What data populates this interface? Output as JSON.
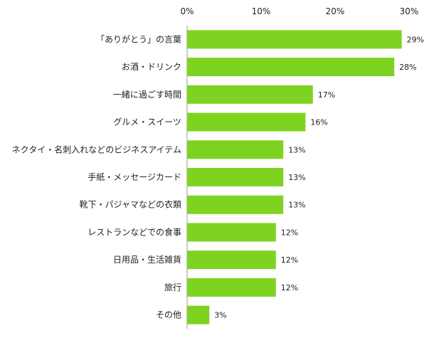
{
  "chart_data": {
    "type": "bar",
    "orientation": "horizontal",
    "title": "",
    "xlabel": "",
    "ylabel": "",
    "xlim": [
      0,
      30
    ],
    "x_ticks": [
      0,
      10,
      20,
      30
    ],
    "x_tick_labels": [
      "0%",
      "10%",
      "20%",
      "30%"
    ],
    "x_axis_position": "top",
    "grid": false,
    "legend": "none",
    "bar_color": "#7ed321",
    "categories": [
      "「ありがとう」の言葉",
      "お酒・ドリンク",
      "一緒に過ごす時間",
      "グルメ・スイーツ",
      "ネクタイ・名刺入れなどのビジネスアイテム",
      "手紙・メッセージカード",
      "靴下・パジャマなどの衣類",
      "レストランなどでの食事",
      "日用品・生活雑貨",
      "旅行",
      "その他"
    ],
    "values": [
      29,
      28,
      17,
      16,
      13,
      13,
      13,
      12,
      12,
      12,
      3
    ],
    "value_labels": [
      "29%",
      "28%",
      "17%",
      "16%",
      "13%",
      "13%",
      "13%",
      "12%",
      "12%",
      "12%",
      "3%"
    ]
  }
}
